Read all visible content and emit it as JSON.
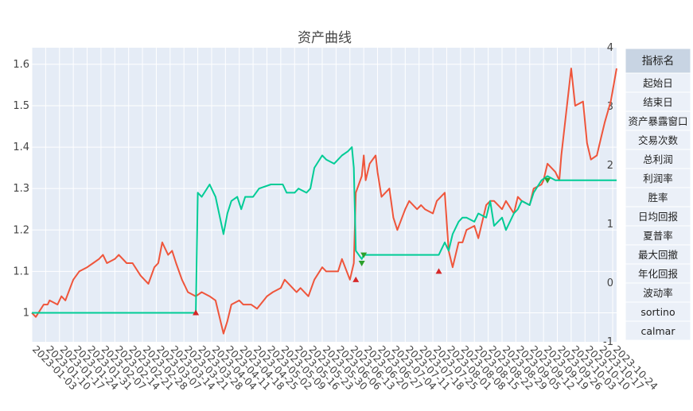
{
  "chart_data": {
    "type": "line",
    "title": "资产曲线",
    "x_start": "2023-01-03",
    "x_end": "2023-10-26",
    "x_tick_labels": [
      "2023-01-03",
      "2023-01-10",
      "2023-01-17",
      "2023-01-24",
      "2023-01-31",
      "2023-02-07",
      "2023-02-14",
      "2023-02-21",
      "2023-02-28",
      "2023-03-07",
      "2023-03-14",
      "2023-03-21",
      "2023-03-28",
      "2023-04-04",
      "2023-04-11",
      "2023-04-18",
      "2023-04-25",
      "2023-05-02",
      "2023-05-09",
      "2023-05-16",
      "2023-05-23",
      "2023-05-30",
      "2023-06-06",
      "2023-06-13",
      "2023-06-20",
      "2023-06-27",
      "2023-07-04",
      "2023-07-11",
      "2023-07-18",
      "2023-07-25",
      "2023-08-01",
      "2023-08-08",
      "2023-08-15",
      "2023-08-22",
      "2023-08-29",
      "2023-09-05",
      "2023-09-12",
      "2023-09-19",
      "2023-09-26",
      "2023-10-03",
      "2023-10-10",
      "2023-10-17",
      "2023-10-24"
    ],
    "y_left": {
      "range": [
        0.93,
        1.64
      ],
      "ticks": [
        "1",
        "1.1",
        "1.2",
        "1.3",
        "1.4",
        "1.5",
        "1.6"
      ]
    },
    "y_right": {
      "range": [
        -1,
        4
      ],
      "ticks": [
        "-1",
        "0",
        "1",
        "2",
        "3",
        "4"
      ]
    },
    "series": [
      {
        "color": "#ef553b",
        "axis": "left",
        "x": [
          "2023-01-03",
          "2023-01-05",
          "2023-01-09",
          "2023-01-11",
          "2023-01-12",
          "2023-01-16",
          "2023-01-18",
          "2023-01-20",
          "2023-01-24",
          "2023-01-27",
          "2023-01-31",
          "2023-02-03",
          "2023-02-06",
          "2023-02-08",
          "2023-02-10",
          "2023-02-14",
          "2023-02-16",
          "2023-02-20",
          "2023-02-23",
          "2023-02-27",
          "2023-03-01",
          "2023-03-03",
          "2023-03-06",
          "2023-03-08",
          "2023-03-10",
          "2023-03-13",
          "2023-03-15",
          "2023-03-17",
          "2023-03-20",
          "2023-03-23",
          "2023-03-27",
          "2023-03-30",
          "2023-04-03",
          "2023-04-06",
          "2023-04-10",
          "2023-04-12",
          "2023-04-14",
          "2023-04-18",
          "2023-04-20",
          "2023-04-24",
          "2023-04-27",
          "2023-05-02",
          "2023-05-05",
          "2023-05-09",
          "2023-05-11",
          "2023-05-15",
          "2023-05-17",
          "2023-05-19",
          "2023-05-23",
          "2023-05-26",
          "2023-05-30",
          "2023-06-01",
          "2023-06-05",
          "2023-06-07",
          "2023-06-09",
          "2023-06-13",
          "2023-06-15",
          "2023-06-16",
          "2023-06-19",
          "2023-06-20",
          "2023-06-21",
          "2023-06-23",
          "2023-06-26",
          "2023-06-27",
          "2023-06-29",
          "2023-07-03",
          "2023-07-05",
          "2023-07-07",
          "2023-07-11",
          "2023-07-13",
          "2023-07-17",
          "2023-07-19",
          "2023-07-21",
          "2023-07-25",
          "2023-07-27",
          "2023-07-31",
          "2023-08-02",
          "2023-08-04",
          "2023-08-07",
          "2023-08-09",
          "2023-08-11",
          "2023-08-15",
          "2023-08-17",
          "2023-08-21",
          "2023-08-23",
          "2023-08-25",
          "2023-08-29",
          "2023-08-31",
          "2023-09-04",
          "2023-09-06",
          "2023-09-08",
          "2023-09-12",
          "2023-09-14",
          "2023-09-18",
          "2023-09-19",
          "2023-09-21",
          "2023-09-25",
          "2023-09-27",
          "2023-09-28",
          "2023-10-03",
          "2023-10-05",
          "2023-10-09",
          "2023-10-11",
          "2023-10-13",
          "2023-10-16",
          "2023-10-18",
          "2023-10-20",
          "2023-10-23",
          "2023-10-26"
        ],
        "values": [
          1.0,
          0.99,
          1.02,
          1.02,
          1.03,
          1.02,
          1.04,
          1.03,
          1.08,
          1.1,
          1.11,
          1.12,
          1.13,
          1.14,
          1.12,
          1.13,
          1.14,
          1.12,
          1.12,
          1.09,
          1.08,
          1.07,
          1.11,
          1.12,
          1.17,
          1.14,
          1.15,
          1.12,
          1.08,
          1.05,
          1.04,
          1.05,
          1.04,
          1.03,
          0.95,
          0.98,
          1.02,
          1.03,
          1.02,
          1.02,
          1.01,
          1.04,
          1.05,
          1.06,
          1.08,
          1.06,
          1.05,
          1.06,
          1.04,
          1.08,
          1.11,
          1.1,
          1.1,
          1.1,
          1.13,
          1.08,
          1.12,
          1.29,
          1.33,
          1.38,
          1.32,
          1.36,
          1.38,
          1.34,
          1.28,
          1.3,
          1.23,
          1.2,
          1.25,
          1.27,
          1.25,
          1.26,
          1.25,
          1.24,
          1.27,
          1.29,
          1.15,
          1.11,
          1.17,
          1.17,
          1.2,
          1.21,
          1.18,
          1.26,
          1.27,
          1.27,
          1.25,
          1.27,
          1.24,
          1.28,
          1.27,
          1.26,
          1.3,
          1.31,
          1.32,
          1.36,
          1.34,
          1.32,
          1.38,
          1.59,
          1.5,
          1.51,
          1.41,
          1.37,
          1.38,
          1.42,
          1.46,
          1.51,
          1.59
        ]
      },
      {
        "color": "#00cc96",
        "axis": "left",
        "x": [
          "2023-01-03",
          "2023-03-27",
          "2023-03-28",
          "2023-03-30",
          "2023-04-03",
          "2023-04-05",
          "2023-04-06",
          "2023-04-10",
          "2023-04-12",
          "2023-04-14",
          "2023-04-17",
          "2023-04-19",
          "2023-04-21",
          "2023-04-25",
          "2023-04-28",
          "2023-05-04",
          "2023-05-08",
          "2023-05-10",
          "2023-05-12",
          "2023-05-16",
          "2023-05-18",
          "2023-05-22",
          "2023-05-24",
          "2023-05-26",
          "2023-05-30",
          "2023-06-01",
          "2023-06-05",
          "2023-06-07",
          "2023-06-09",
          "2023-06-12",
          "2023-06-14",
          "2023-06-15",
          "2023-06-16",
          "2023-06-19",
          "2023-06-20",
          "2023-07-28",
          "2023-07-31",
          "2023-08-02",
          "2023-08-04",
          "2023-08-07",
          "2023-08-09",
          "2023-08-11",
          "2023-08-15",
          "2023-08-17",
          "2023-08-21",
          "2023-08-23",
          "2023-08-25",
          "2023-08-29",
          "2023-08-31",
          "2023-09-04",
          "2023-09-06",
          "2023-09-08",
          "2023-09-12",
          "2023-09-14",
          "2023-09-18",
          "2023-09-21",
          "2023-09-25",
          "2023-10-26"
        ],
        "values": [
          1.0,
          1.0,
          1.29,
          1.28,
          1.31,
          1.29,
          1.28,
          1.19,
          1.24,
          1.27,
          1.28,
          1.25,
          1.28,
          1.28,
          1.3,
          1.31,
          1.31,
          1.31,
          1.29,
          1.29,
          1.3,
          1.29,
          1.3,
          1.35,
          1.38,
          1.37,
          1.36,
          1.37,
          1.38,
          1.39,
          1.4,
          1.35,
          1.15,
          1.13,
          1.14,
          1.14,
          1.17,
          1.15,
          1.19,
          1.22,
          1.23,
          1.23,
          1.22,
          1.24,
          1.23,
          1.27,
          1.21,
          1.23,
          1.2,
          1.24,
          1.25,
          1.27,
          1.26,
          1.29,
          1.32,
          1.33,
          1.32,
          1.32
        ]
      }
    ],
    "markers": [
      {
        "x": "2023-03-27",
        "y": 1.0,
        "color": "#d62728",
        "symbol": "triangle-up"
      },
      {
        "x": "2023-06-16",
        "y": 1.08,
        "color": "#d62728",
        "symbol": "triangle-up"
      },
      {
        "x": "2023-06-19",
        "y": 1.12,
        "color": "#2ca02c",
        "symbol": "triangle-down"
      },
      {
        "x": "2023-06-20",
        "y": 1.14,
        "color": "#2ca02c",
        "symbol": "triangle-down"
      },
      {
        "x": "2023-07-28",
        "y": 1.1,
        "color": "#d62728",
        "symbol": "triangle-up"
      },
      {
        "x": "2023-09-21",
        "y": 1.32,
        "color": "#2ca02c",
        "symbol": "triangle-down"
      }
    ]
  },
  "table": {
    "header": "指标名",
    "rows": [
      "起始日",
      "结束日",
      "资产暴露窗口",
      "交易次数",
      "总利润",
      "利润率",
      "胜率",
      "日均回报",
      "夏普率",
      "最大回撤",
      "年化回报",
      "波动率",
      "sortino",
      "calmar"
    ],
    "header_color": "#c8d4e3",
    "row_color": "#ebf0f8"
  },
  "colors": {
    "plot_bg": "#e5ecf6",
    "grid": "#ffffff"
  }
}
